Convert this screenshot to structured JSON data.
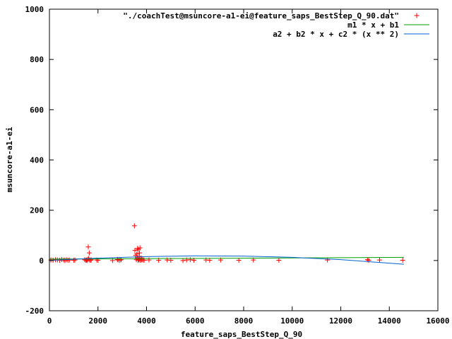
{
  "chart_data": {
    "type": "scatter",
    "title": "",
    "xlabel": "feature_saps_BestStep_Q_90",
    "ylabel": "msuncore-a1-ei",
    "xlim": [
      0,
      16000
    ],
    "ylim": [
      -200,
      1000
    ],
    "x_ticks": [
      "0",
      "2000",
      "4000",
      "6000",
      "8000",
      "10000",
      "12000",
      "14000",
      "16000"
    ],
    "y_ticks": [
      "-200",
      "0",
      "200",
      "400",
      "600",
      "800",
      "1000"
    ],
    "x_tick_values": [
      0,
      2000,
      4000,
      6000,
      8000,
      10000,
      12000,
      14000,
      16000
    ],
    "y_tick_values": [
      -200,
      0,
      200,
      400,
      600,
      800,
      1000
    ],
    "grid": false,
    "legend_position": "top-right",
    "series": [
      {
        "name": "\"./coachTest@msuncore-a1-ei@feature_saps_BestStep_Q_90.dat\"",
        "kind": "points",
        "color": "#ff0000",
        "x": [
          60,
          150,
          250,
          330,
          420,
          510,
          590,
          640,
          700,
          760,
          820,
          1000,
          1050,
          1450,
          1500,
          1530,
          1550,
          1580,
          1600,
          1620,
          1640,
          1650,
          1700,
          1720,
          1950,
          2000,
          2600,
          2800,
          2830,
          2900,
          2950,
          3500,
          3520,
          3550,
          3580,
          3600,
          3620,
          3630,
          3650,
          3660,
          3680,
          3700,
          3710,
          3720,
          3730,
          3760,
          3780,
          3800,
          3850,
          3900,
          4100,
          4500,
          4850,
          5000,
          5500,
          5650,
          5800,
          5950,
          6450,
          6600,
          7050,
          7800,
          8400,
          9450,
          11450,
          13100,
          13150,
          13600,
          14550
        ],
        "y": [
          2,
          1,
          3,
          2,
          1,
          4,
          2,
          0,
          3,
          1,
          2,
          1,
          2,
          3,
          1,
          2,
          0,
          5,
          54,
          8,
          30,
          2,
          1,
          3,
          2,
          1,
          0,
          4,
          2,
          1,
          3,
          138,
          40,
          20,
          3,
          26,
          10,
          48,
          1,
          44,
          5,
          16,
          30,
          2,
          50,
          1,
          10,
          3,
          2,
          1,
          2,
          1,
          2,
          1,
          0,
          2,
          3,
          1,
          2,
          1,
          2,
          1,
          2,
          1,
          2,
          3,
          1,
          2,
          1
        ]
      },
      {
        "name": "m1 * x + b1",
        "kind": "line",
        "color": "#00a000",
        "x": [
          0,
          14600
        ],
        "y": [
          5.5,
          12.5
        ]
      },
      {
        "name": "a2 + b2 * x + c2 * (x ** 2)",
        "kind": "line",
        "color": "#0060d0",
        "x": [
          0,
          2000,
          4000,
          6000,
          8000,
          10000,
          12000,
          14600
        ],
        "y": [
          0.5,
          9.5,
          15.5,
          18.5,
          17.5,
          12.5,
          3.5,
          -15
        ]
      }
    ]
  }
}
